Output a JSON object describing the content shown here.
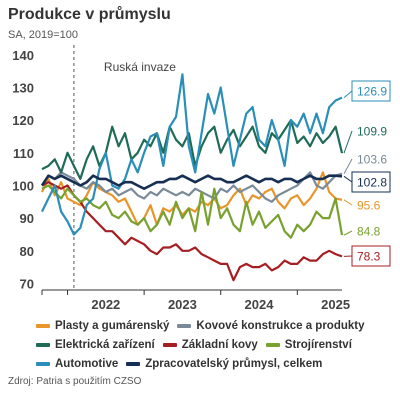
{
  "title": "Produkce v průmyslu",
  "subtitle": "SA, 2019=100",
  "source": "Zdroj: Patria s použitím CZSO",
  "chart_data": {
    "type": "line",
    "x_start": "2021-09",
    "ylim": [
      68,
      143
    ],
    "yticks": [
      70,
      80,
      90,
      100,
      110,
      120,
      130,
      140
    ],
    "xticks": [
      {
        "label": "2022",
        "x": "2022-01"
      },
      {
        "label": "2023",
        "x": "2023-01"
      },
      {
        "label": "2024",
        "x": "2024-01"
      },
      {
        "label": "2025",
        "x": "2025-01"
      }
    ],
    "annotation": {
      "text": "Ruská invaze",
      "x": "2022-02"
    },
    "grid": false,
    "legend": "bottom",
    "series": [
      {
        "name": "Plasty a gumárenský",
        "color": "#e8962a",
        "end_label": "95.6",
        "values": [
          98,
          102,
          97,
          101,
          96,
          95,
          94,
          97,
          101,
          99,
          98,
          97,
          95,
          96,
          92,
          88,
          90,
          94,
          88,
          93,
          92,
          94,
          91,
          93,
          92,
          95,
          94,
          96,
          93,
          94,
          97,
          99,
          94,
          97,
          96,
          98,
          99,
          95,
          93,
          96,
          97,
          94,
          96,
          99,
          104,
          98,
          96,
          95.6
        ]
      },
      {
        "name": "Kovové konstrukce a produkty",
        "color": "#7a8a99",
        "end_label": "103.6",
        "values": [
          100,
          103,
          102,
          104,
          103,
          102,
          100,
          99,
          101,
          100,
          98,
          99,
          97,
          98,
          99,
          97,
          96,
          98,
          97,
          99,
          98,
          97,
          98,
          97,
          99,
          98,
          97,
          96,
          99,
          98,
          100,
          98,
          99,
          100,
          98,
          96,
          95,
          97,
          98,
          99,
          100,
          102,
          104,
          100,
          99,
          101,
          103,
          103.6
        ]
      },
      {
        "name": "Elektrická zařízení",
        "color": "#1f6b56",
        "end_label": "109.9",
        "values": [
          105,
          106,
          108,
          104,
          110,
          106,
          102,
          108,
          112,
          106,
          110,
          118,
          112,
          116,
          108,
          110,
          114,
          112,
          116,
          110,
          118,
          114,
          112,
          116,
          106,
          112,
          116,
          118,
          110,
          114,
          117,
          112,
          115,
          118,
          112,
          110,
          116,
          114,
          117,
          120,
          113,
          115,
          112,
          116,
          113,
          115,
          118,
          109.9
        ]
      },
      {
        "name": "Základní kovy",
        "color": "#a51e22",
        "end_label": "78.3",
        "values": [
          100,
          101,
          100,
          99,
          100,
          97,
          95,
          92,
          90,
          88,
          86,
          86,
          84,
          82,
          84,
          83,
          82,
          80,
          79,
          81,
          81,
          82,
          80,
          80,
          81,
          79,
          78,
          77,
          76,
          76,
          71,
          75,
          76,
          75,
          75,
          76,
          74,
          75,
          77,
          76,
          76,
          78,
          77,
          77,
          79,
          80,
          79,
          78.3
        ]
      },
      {
        "name": "Strojírenství",
        "color": "#78a12f",
        "end_label": "84.8",
        "values": [
          99,
          100,
          98,
          96,
          99,
          97,
          95,
          96,
          94,
          93,
          95,
          91,
          90,
          92,
          89,
          88,
          90,
          86,
          88,
          92,
          88,
          95,
          90,
          93,
          86,
          98,
          88,
          99,
          90,
          93,
          88,
          86,
          95,
          88,
          92,
          87,
          89,
          91,
          86,
          84,
          88,
          86,
          88,
          92,
          90,
          90,
          96,
          84.8
        ]
      },
      {
        "name": "Automotive",
        "color": "#2a8fb8",
        "end_label": "126.9",
        "values": [
          92,
          96,
          100,
          92,
          89,
          85,
          87,
          94,
          96,
          105,
          110,
          100,
          99,
          102,
          108,
          104,
          110,
          115,
          116,
          106,
          118,
          121,
          134,
          112,
          104,
          116,
          128,
          122,
          130,
          118,
          106,
          114,
          122,
          124,
          114,
          112,
          120,
          114,
          106,
          120,
          118,
          122,
          116,
          122,
          116,
          124,
          126,
          126.9
        ]
      },
      {
        "name": "Zpracovatelský průmysl, celkem",
        "color": "#162f52",
        "end_label": "102.8",
        "values": [
          100,
          103,
          102,
          103,
          102,
          101,
          100,
          101,
          103,
          102,
          102,
          101,
          100,
          101,
          101,
          100,
          99,
          100,
          101,
          101,
          102,
          102,
          103,
          102,
          101,
          102,
          103,
          102,
          102,
          101,
          101,
          102,
          103,
          102,
          101,
          102,
          102,
          101,
          102,
          102,
          101,
          102,
          103,
          102,
          102,
          103,
          103,
          102.8
        ]
      }
    ]
  },
  "legend_rows": [
    [
      0,
      1
    ],
    [
      2,
      3,
      4
    ],
    [
      5,
      6
    ]
  ]
}
